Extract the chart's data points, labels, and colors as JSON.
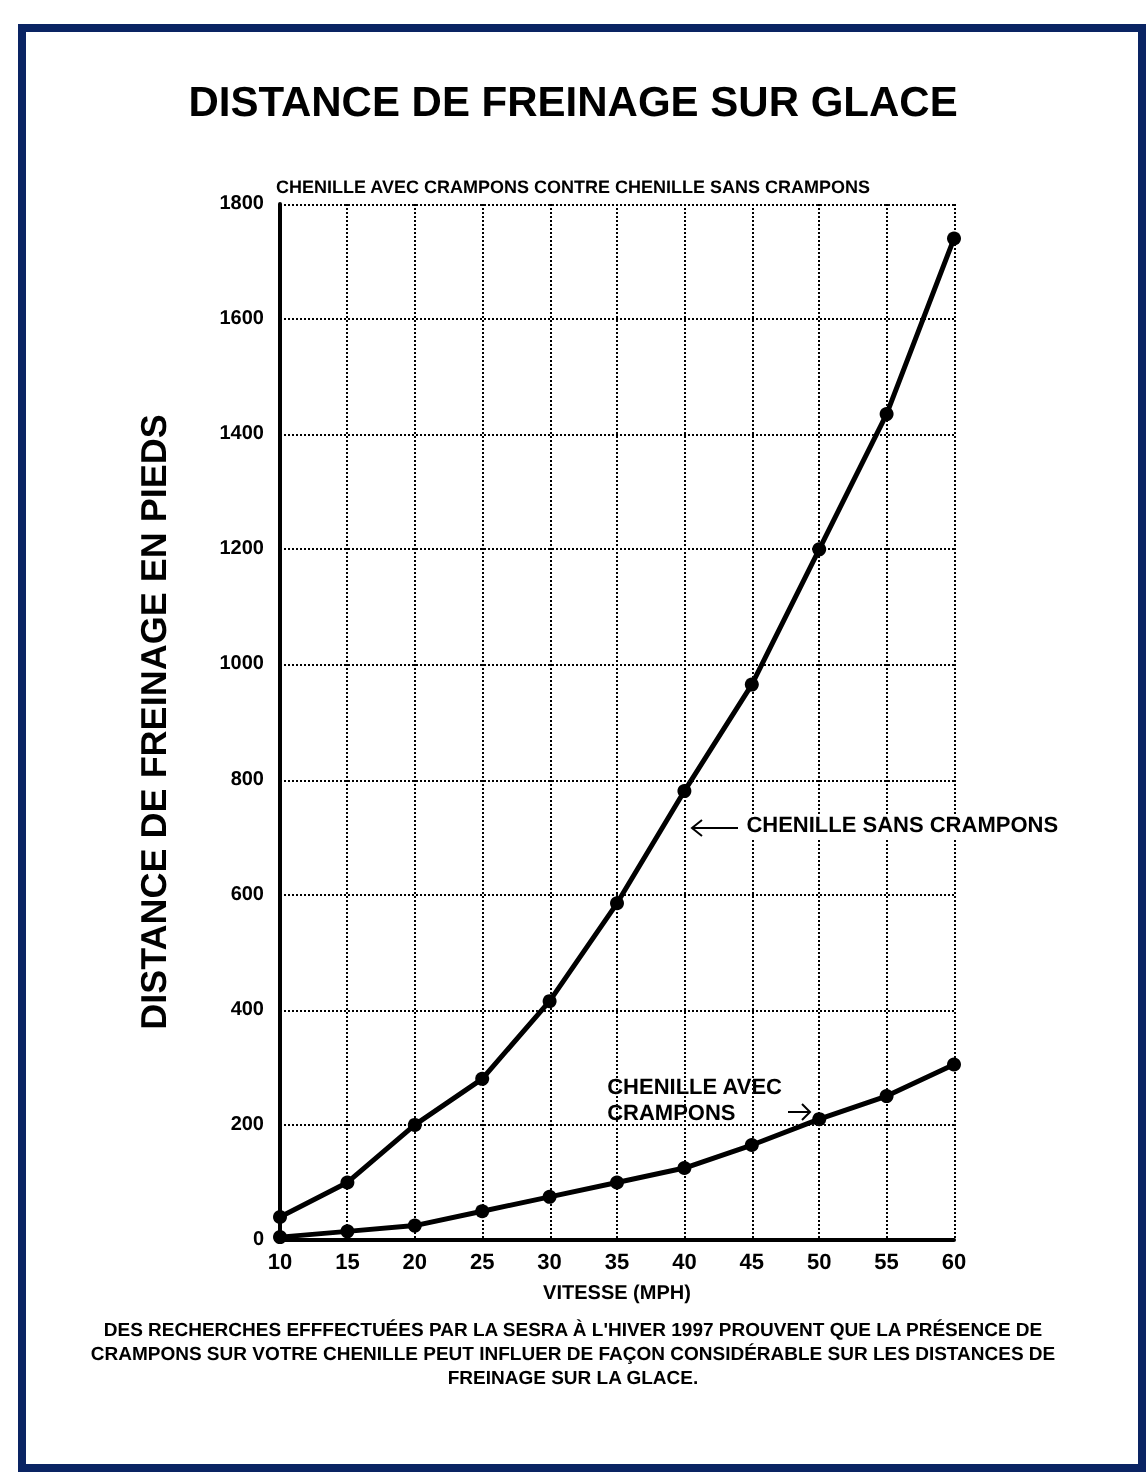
{
  "chart_data": {
    "type": "line",
    "title": "DISTANCE DE FREINAGE SUR GLACE",
    "subtitle": "CHENILLE AVEC CRAMPONS CONTRE CHENILLE SANS CRAMPONS",
    "xlabel": "VITESSE (MPH)",
    "ylabel": "DISTANCE DE FREINAGE EN PIEDS",
    "x": [
      10,
      15,
      20,
      25,
      30,
      35,
      40,
      45,
      50,
      55,
      60
    ],
    "series": [
      {
        "color": "#000000",
        "values": [
          40,
          100,
          200,
          280,
          415,
          585,
          780,
          965,
          1200,
          1435,
          1740
        ]
      },
      {
        "color": "#000000",
        "values": [
          5,
          15,
          25,
          50,
          75,
          100,
          125,
          165,
          210,
          250,
          305
        ]
      }
    ],
    "xlim": [
      10,
      60
    ],
    "xticks": [
      10,
      15,
      20,
      25,
      30,
      35,
      40,
      45,
      50,
      55,
      60
    ],
    "ylim": [
      0,
      1800
    ],
    "yticks": [
      0,
      200,
      400,
      600,
      800,
      1000,
      1200,
      1400,
      1600,
      1800
    ],
    "grid": true,
    "marker": "circle",
    "line_style": "solid",
    "annotations": [
      {
        "text": "CHENILLE SANS CRAMPONS",
        "x": 40,
        "y": 780
      },
      {
        "text": "CHENILLE AVEC\nCRAMPONS",
        "x": 50,
        "y": 210
      },
      "DES RECHERCHES EFFFECTUÉES PAR LA SESRA À L'HIVER 1997 PROUVENT QUE LA PRÉSENCE DE CRAMPONS SUR VOTRE CHENILLE PEUT INFLUER DE FAÇON CONSIDÉRABLE SUR LES DISTANCES DE FREINAGE SUR LA GLACE."
    ]
  }
}
